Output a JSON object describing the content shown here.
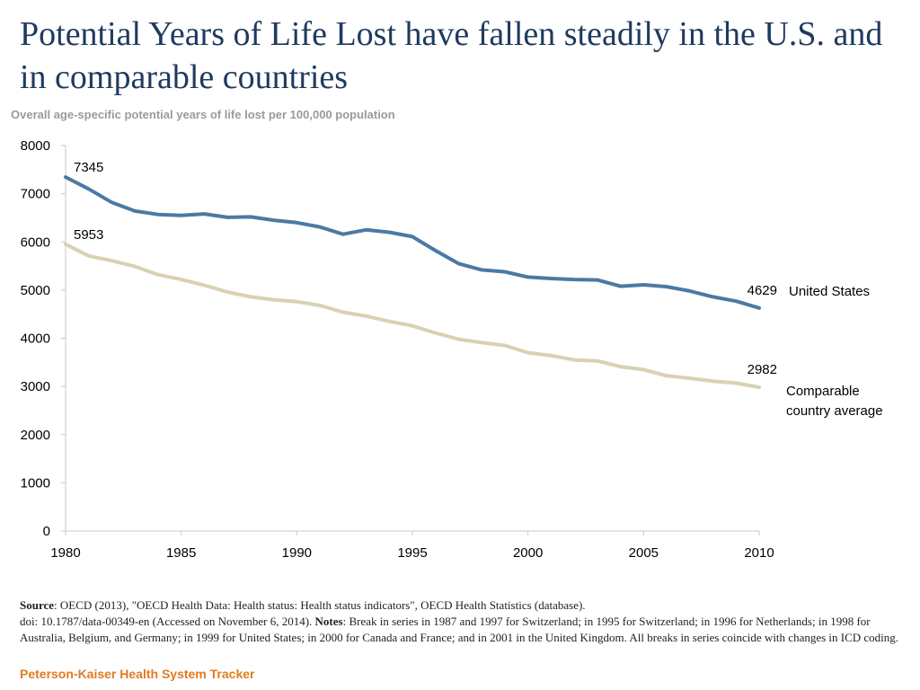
{
  "header": {
    "title": "Potential Years of Life Lost have fallen steadily in the U.S. and in comparable countries",
    "subtitle": "Overall age-specific potential years of life lost per 100,000 population"
  },
  "colors": {
    "us": "#4a7aa3",
    "comp": "#d8d1b3",
    "axis": "#c8c8c8",
    "title": "#1f3a5f",
    "brand": "#e07b1f"
  },
  "chart_data": {
    "type": "line",
    "title": "Potential Years of Life Lost have fallen steadily in the U.S. and in comparable countries",
    "ylabel": "Overall age-specific potential years of life lost per 100,000 population",
    "xlabel": "",
    "ylim": [
      0,
      8000
    ],
    "xlim": [
      1980,
      2010
    ],
    "yticks": [
      "0",
      "1000",
      "2000",
      "3000",
      "4000",
      "5000",
      "6000",
      "7000",
      "8000"
    ],
    "xticks": [
      "1980",
      "1985",
      "1990",
      "1995",
      "2000",
      "2005",
      "2010"
    ],
    "x": [
      1980,
      1981,
      1982,
      1983,
      1984,
      1985,
      1986,
      1987,
      1988,
      1989,
      1990,
      1991,
      1992,
      1993,
      1994,
      1995,
      1996,
      1997,
      1998,
      1999,
      2000,
      2001,
      2002,
      2003,
      2004,
      2005,
      2006,
      2007,
      2008,
      2009,
      2010
    ],
    "series": [
      {
        "name": "United States",
        "color": "#4a7aa3",
        "values": [
          7345,
          7100,
          6820,
          6640,
          6570,
          6550,
          6580,
          6510,
          6520,
          6450,
          6400,
          6310,
          6160,
          6250,
          6200,
          6110,
          5820,
          5550,
          5420,
          5380,
          5270,
          5240,
          5220,
          5210,
          5080,
          5110,
          5070,
          4980,
          4860,
          4770,
          4629
        ],
        "start_label": "7345",
        "end_label": "4629",
        "legend_lines": [
          "United States"
        ]
      },
      {
        "name": "Comparable country average",
        "color": "#d8d1b3",
        "values": [
          5953,
          5710,
          5610,
          5490,
          5320,
          5220,
          5100,
          4960,
          4860,
          4800,
          4760,
          4680,
          4540,
          4460,
          4350,
          4260,
          4110,
          3980,
          3910,
          3850,
          3700,
          3640,
          3550,
          3530,
          3410,
          3350,
          3220,
          3170,
          3110,
          3070,
          2982
        ],
        "start_label": "5953",
        "end_label": "2982",
        "legend_lines": [
          "Comparable",
          "country average"
        ]
      }
    ]
  },
  "footer": {
    "source_label": "Source",
    "source_text": ": OECD (2013), \"OECD Health Data: Health status: Health status indicators\", OECD Health Statistics (database).",
    "doi_text": "doi: 10.1787/data-00349-en (Accessed on November 6, 2014). ",
    "notes_label": "Notes",
    "notes_text": ": Break in series in 1987 and 1997 for Switzerland;  in 1995 for Switzerland; in 1996 for Netherlands; in 1998 for Australia, Belgium, and Germany; in 1999 for United States;  in 2000 for Canada and France; and in 2001 in the United Kingdom. All breaks in series coincide with  changes in ICD coding."
  },
  "brand": "Peterson-Kaiser Health System Tracker"
}
